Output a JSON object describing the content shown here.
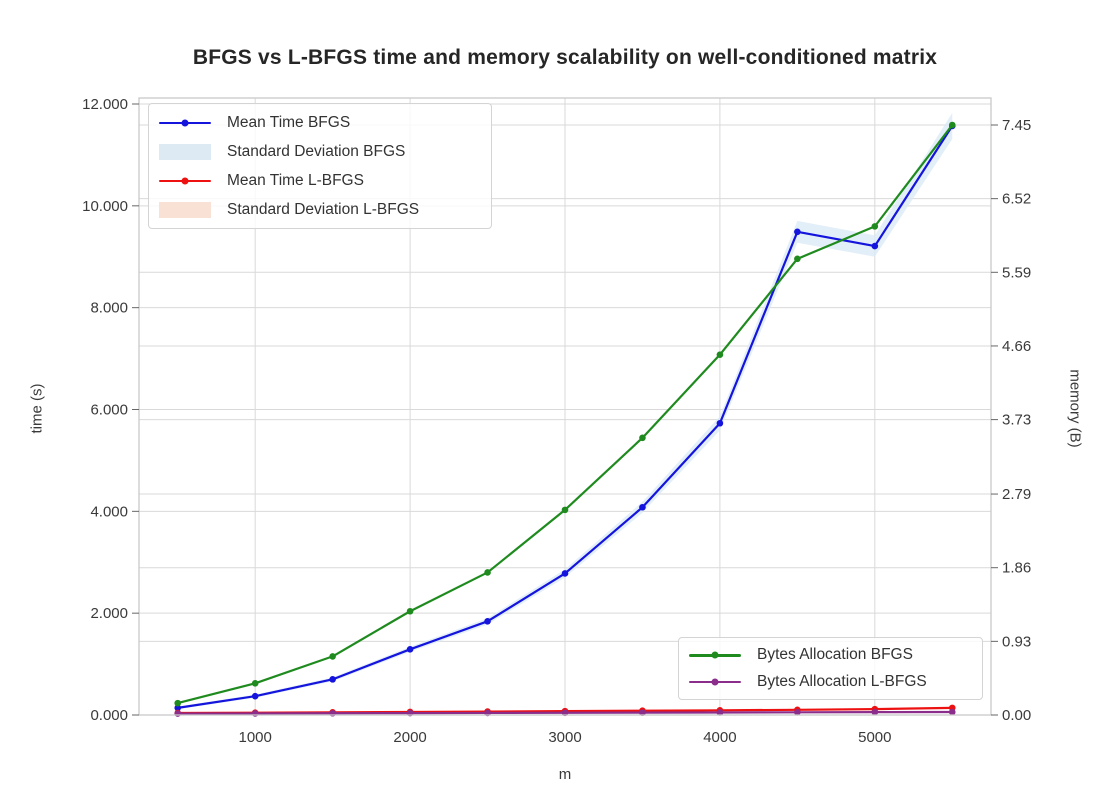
{
  "title": "BFGS vs L-BFGS time and memory scalability on well-conditioned matrix",
  "axes": {
    "xlabel": "m",
    "ylabel_left": "time (s)",
    "ylabel_right": "memory (B)"
  },
  "chart_data": {
    "type": "line",
    "title": "BFGS vs L-BFGS time and memory scalability on well-conditioned matrix",
    "xlabel": "m",
    "ylabel_left": "time (s)",
    "ylabel_right": "memory (B)",
    "grid": true,
    "x": [
      500,
      1000,
      1500,
      2000,
      2500,
      3000,
      3500,
      4000,
      4500,
      5000,
      5500
    ],
    "xlim": [
      250,
      5750
    ],
    "ylim_left": [
      0,
      12000
    ],
    "ylim_right": [
      0,
      7.45
    ],
    "x_tick_labels": [
      "1000",
      "2000",
      "3000",
      "4000",
      "5000"
    ],
    "x_tick_values": [
      1000,
      2000,
      3000,
      4000,
      5000
    ],
    "y_ticks_left_labels": [
      "0.000",
      "2.000",
      "4.000",
      "6.000",
      "8.000",
      "10.000",
      "12.000"
    ],
    "y_ticks_left_values": [
      0,
      2000,
      4000,
      6000,
      8000,
      10000,
      12000
    ],
    "y_ticks_right_labels": [
      "0.00",
      "0.93",
      "1.86",
      "2.79",
      "3.73",
      "4.66",
      "5.59",
      "6.52",
      "7.45"
    ],
    "y_ticks_right_values": [
      0,
      0.93,
      1.86,
      2.79,
      3.73,
      4.66,
      5.59,
      6.52,
      7.45
    ],
    "series": [
      {
        "name": "Mean Time BFGS",
        "axis": "left",
        "color": "#1414dc",
        "band_color": "#d9eaf5",
        "band_rel": 0.02,
        "band_abs": 25,
        "values": [
          140,
          370,
          700,
          1290,
          1840,
          2780,
          4080,
          5730,
          9490,
          9210,
          11570
        ]
      },
      {
        "name": "Mean Time L-BFGS",
        "axis": "left",
        "color": "#ee1111",
        "band_color": "#fae1d6",
        "band_rel": 0,
        "band_abs": 14,
        "values": [
          40,
          45,
          52,
          60,
          68,
          76,
          84,
          92,
          102,
          115,
          140
        ]
      },
      {
        "name": "Bytes Allocation BFGS",
        "axis": "right",
        "color": "#1f8b1f",
        "values": [
          0.15,
          0.4,
          0.74,
          1.31,
          1.8,
          2.59,
          3.5,
          4.55,
          5.76,
          6.17,
          7.45
        ]
      },
      {
        "name": "Bytes Allocation L-BFGS",
        "axis": "right",
        "color": "#8b2d8b",
        "values": [
          0.018,
          0.02,
          0.022,
          0.024,
          0.026,
          0.028,
          0.03,
          0.032,
          0.034,
          0.036,
          0.038
        ]
      }
    ],
    "legend_position": [
      "upper left",
      "lower right"
    ]
  },
  "legend_main": {
    "entries": [
      {
        "label": "Mean Time BFGS",
        "kind": "line",
        "color": "#1414dc"
      },
      {
        "label": "Standard Deviation BFGS",
        "kind": "patch",
        "color": "#ddeaf3"
      },
      {
        "label": "Mean Time L-BFGS",
        "kind": "line",
        "color": "#ee1111"
      },
      {
        "label": "Standard Deviation L-BFGS",
        "kind": "patch",
        "color": "#fae1d6"
      }
    ]
  },
  "legend_bytes": {
    "entries": [
      {
        "label": "Bytes Allocation BFGS",
        "kind": "line",
        "color": "#1f8b1f"
      },
      {
        "label": "Bytes Allocation L-BFGS",
        "kind": "line",
        "color": "#8b2d8b"
      }
    ]
  },
  "style": {
    "grid_color": "#d9d9d9",
    "spine_color": "#c9c9c9",
    "tick_text_color": "#3a3a3a",
    "title_color": "#262626"
  }
}
